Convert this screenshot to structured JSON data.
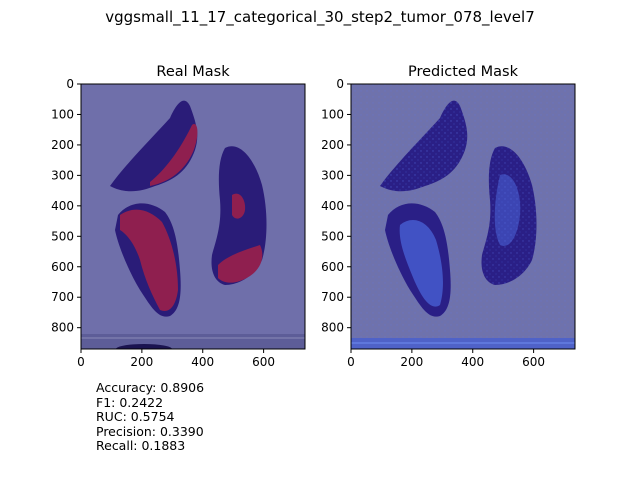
{
  "figure": {
    "title": "vggsmall_11_17_categorical_30_step2_tumor_078_level7"
  },
  "chart_data": [
    {
      "type": "heatmap",
      "title": "Real Mask",
      "xlim": [
        0,
        736
      ],
      "ylim": [
        870,
        0
      ],
      "x_ticks": [
        0,
        200,
        400,
        600
      ],
      "y_ticks": [
        0,
        100,
        200,
        300,
        400,
        500,
        600,
        700,
        800
      ],
      "grid": false,
      "overlay": "binary tumor mask over tissue slide",
      "colors": {
        "background": "#6f6faa",
        "tissue": "#2a1c78",
        "tumor": "#8f1f4f"
      }
    },
    {
      "type": "heatmap",
      "title": "Predicted Mask",
      "xlim": [
        0,
        736
      ],
      "ylim": [
        870,
        0
      ],
      "x_ticks": [
        0,
        200,
        400,
        600
      ],
      "y_ticks": [
        0,
        100,
        200,
        300,
        400,
        500,
        600,
        700,
        800
      ],
      "grid": false,
      "overlay": "predicted probability mask over tissue slide",
      "colors": {
        "background": "#6f72ac",
        "tissue": "#2a1f86",
        "prediction": "#4a64d8"
      }
    }
  ],
  "metrics": [
    {
      "label": "Accuracy",
      "value": "0.8906"
    },
    {
      "label": "F1",
      "value": "0.2422"
    },
    {
      "label": "RUC",
      "value": "0.5754"
    },
    {
      "label": "Precision",
      "value": "0.3390"
    },
    {
      "label": "Recall",
      "value": "0.1883"
    }
  ]
}
